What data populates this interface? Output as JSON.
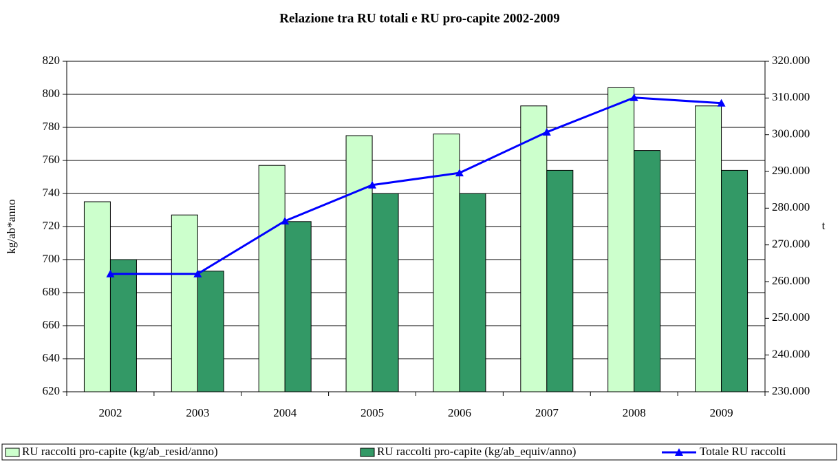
{
  "chart_data": {
    "type": "bar_line",
    "title": "Relazione tra RU totali e RU pro-capite 2002-2009",
    "ylabel": "kg/ab*anno",
    "y2label": "t",
    "categories": [
      "2002",
      "2003",
      "2004",
      "2005",
      "2006",
      "2007",
      "2008",
      "2009"
    ],
    "series": [
      {
        "name": "RU raccolti pro-capite (kg/ab_resid/anno)",
        "type": "bar",
        "color": "#ccffcc",
        "values": [
          735,
          727,
          757,
          775,
          776,
          793,
          804,
          793
        ]
      },
      {
        "name": "RU raccolti pro-capite (kg/ab_equiv/anno)",
        "type": "bar",
        "color": "#339966",
        "values": [
          700,
          693,
          723,
          740,
          740,
          754,
          766,
          754
        ]
      },
      {
        "name": "Totale RU raccolti",
        "type": "line",
        "axis": "y2",
        "color": "#0000ff",
        "values": [
          262100,
          262100,
          276500,
          286300,
          289600,
          300700,
          310100,
          308600
        ]
      }
    ],
    "ylim": [
      620,
      820
    ],
    "yticks": [
      620,
      640,
      660,
      680,
      700,
      720,
      740,
      760,
      780,
      800,
      820
    ],
    "y2lim": [
      230000,
      320000
    ],
    "y2ticks": [
      {
        "value": 230000,
        "label": "230.000"
      },
      {
        "value": 240000,
        "label": "240.000"
      },
      {
        "value": 250000,
        "label": "250.000"
      },
      {
        "value": 260000,
        "label": "260.000"
      },
      {
        "value": 270000,
        "label": "270.000"
      },
      {
        "value": 280000,
        "label": "280.000"
      },
      {
        "value": 290000,
        "label": "290.000"
      },
      {
        "value": 300000,
        "label": "300.000"
      },
      {
        "value": 310000,
        "label": "310.000"
      },
      {
        "value": 320000,
        "label": "320.000"
      }
    ],
    "grid": true,
    "legend": "bottom"
  }
}
